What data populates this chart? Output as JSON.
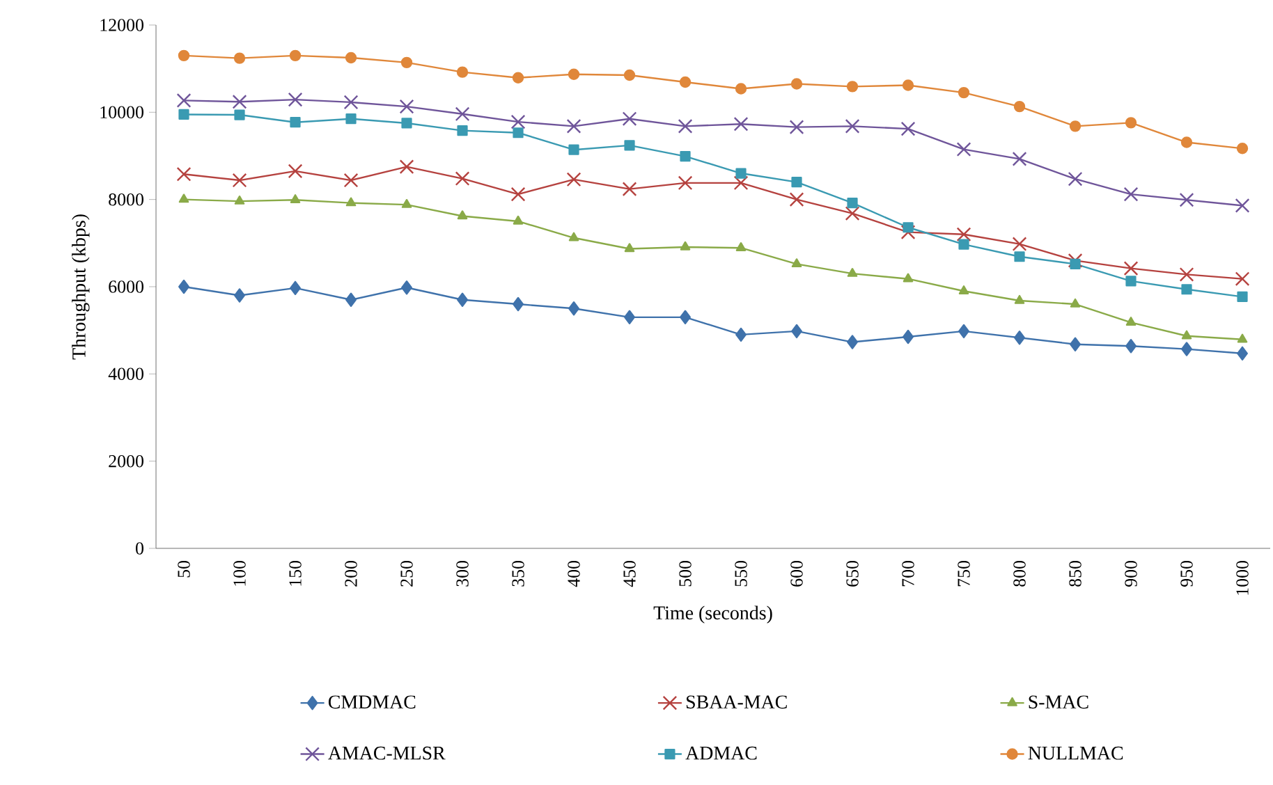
{
  "chart_data": {
    "type": "line",
    "xlabel": "Time (seconds)",
    "ylabel": "Throughput (kbps)",
    "categories": [
      "50",
      "100",
      "150",
      "200",
      "250",
      "300",
      "350",
      "400",
      "450",
      "500",
      "550",
      "600",
      "650",
      "700",
      "750",
      "800",
      "850",
      "900",
      "950",
      "1000"
    ],
    "ylim": [
      0,
      12000
    ],
    "yticks": [
      0,
      2000,
      4000,
      6000,
      8000,
      10000,
      12000
    ],
    "grid": false,
    "legend": "bottom",
    "line_style": "solid",
    "series": [
      {
        "name": "CMDMAC",
        "color": "#3f72ab",
        "marker": "diamond",
        "values": [
          6000,
          5800,
          5970,
          5700,
          5980,
          5700,
          5600,
          5500,
          5300,
          5300,
          4900,
          4980,
          4730,
          4850,
          4980,
          4830,
          4680,
          4640,
          4570,
          4470
        ]
      },
      {
        "name": "SBAA-MAC",
        "color": "#b5423f",
        "marker": "cross",
        "values": [
          8580,
          8440,
          8650,
          8440,
          8750,
          8480,
          8120,
          8460,
          8240,
          8380,
          8380,
          8000,
          7680,
          7250,
          7200,
          6980,
          6600,
          6420,
          6280,
          6180
        ]
      },
      {
        "name": "S-MAC",
        "color": "#8aaa48",
        "marker": "triangle",
        "values": [
          8000,
          7960,
          7990,
          7920,
          7880,
          7620,
          7500,
          7120,
          6870,
          6910,
          6890,
          6520,
          6300,
          6180,
          5900,
          5680,
          5600,
          5180,
          4870,
          4790
        ]
      },
      {
        "name": "AMAC-MLSR",
        "color": "#6f559a",
        "marker": "cross",
        "values": [
          10270,
          10240,
          10290,
          10230,
          10130,
          9960,
          9780,
          9680,
          9850,
          9680,
          9730,
          9660,
          9680,
          9620,
          9150,
          8930,
          8470,
          8120,
          7990,
          7860
        ]
      },
      {
        "name": "ADMAC",
        "color": "#3a9ab2",
        "marker": "square",
        "values": [
          9950,
          9940,
          9770,
          9850,
          9750,
          9580,
          9530,
          9140,
          9240,
          8990,
          8600,
          8400,
          7920,
          7360,
          6970,
          6690,
          6520,
          6130,
          5940,
          5770
        ]
      },
      {
        "name": "NULLMAC",
        "color": "#e0873a",
        "marker": "circle",
        "values": [
          11300,
          11240,
          11300,
          11250,
          11140,
          10920,
          10790,
          10870,
          10850,
          10690,
          10540,
          10650,
          10590,
          10620,
          10450,
          10130,
          9680,
          9760,
          9310,
          9170
        ]
      }
    ]
  }
}
